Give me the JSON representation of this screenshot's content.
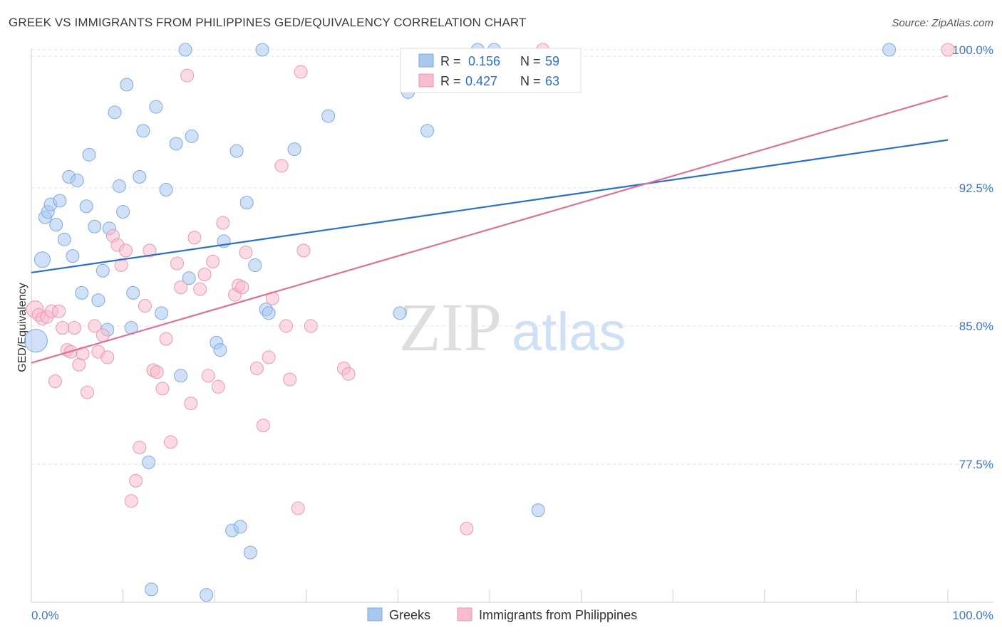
{
  "chart_data": {
    "type": "scatter",
    "title": "GREEK VS IMMIGRANTS FROM PHILIPPINES GED/EQUIVALENCY CORRELATION CHART",
    "source": "Source: ZipAtlas.com",
    "ylabel": "GED/Equivalency",
    "xlim": [
      0,
      100
    ],
    "ylim": [
      70,
      101
    ],
    "x_tick_labels": [
      "0.0%",
      "100.0%"
    ],
    "y_ticks": [
      {
        "value": 100,
        "label": "100.0%"
      },
      {
        "value": 92.5,
        "label": "92.5%"
      },
      {
        "value": 85,
        "label": "85.0%"
      },
      {
        "value": 77.5,
        "label": "77.5%"
      }
    ],
    "grid": true,
    "watermark": {
      "zip": "ZIP",
      "atlas": "atlas"
    },
    "legend": [
      {
        "r_label": "R =",
        "r_value": "0.156",
        "n_label": "N =",
        "n_value": "59"
      },
      {
        "r_label": "R =",
        "r_value": "0.427",
        "n_label": "N =",
        "n_value": "63"
      }
    ],
    "series": [
      {
        "name": "Greeks",
        "color": "#a9c8f0",
        "line_color": "#2a6fcc",
        "trend": {
          "x0": 0,
          "y0": 87.9,
          "x1": 100,
          "y1": 95.1
        },
        "points": [
          [
            0.5,
            84.2
          ],
          [
            1.2,
            88.6
          ],
          [
            1.5,
            90.9
          ],
          [
            1.8,
            91.2
          ],
          [
            2.1,
            91.6
          ],
          [
            2.7,
            90.5
          ],
          [
            3.1,
            91.8
          ],
          [
            3.6,
            89.7
          ],
          [
            4.1,
            93.1
          ],
          [
            4.5,
            88.8
          ],
          [
            5.0,
            92.9
          ],
          [
            5.5,
            86.8
          ],
          [
            6.0,
            91.5
          ],
          [
            6.3,
            94.3
          ],
          [
            6.9,
            90.4
          ],
          [
            7.3,
            86.4
          ],
          [
            7.8,
            88.0
          ],
          [
            8.3,
            84.8
          ],
          [
            8.5,
            90.3
          ],
          [
            9.1,
            96.6
          ],
          [
            9.6,
            92.6
          ],
          [
            10.0,
            91.2
          ],
          [
            10.4,
            98.1
          ],
          [
            10.9,
            84.9
          ],
          [
            11.1,
            86.8
          ],
          [
            11.8,
            93.1
          ],
          [
            12.2,
            95.6
          ],
          [
            12.8,
            77.6
          ],
          [
            13.1,
            70.7
          ],
          [
            13.6,
            96.9
          ],
          [
            14.2,
            85.7
          ],
          [
            14.7,
            92.4
          ],
          [
            15.8,
            94.9
          ],
          [
            16.3,
            82.3
          ],
          [
            16.8,
            100.0
          ],
          [
            17.2,
            87.6
          ],
          [
            17.5,
            95.3
          ],
          [
            19.1,
            70.4
          ],
          [
            20.2,
            84.1
          ],
          [
            20.6,
            83.7
          ],
          [
            21.0,
            89.6
          ],
          [
            21.9,
            73.9
          ],
          [
            22.4,
            94.5
          ],
          [
            22.8,
            74.1
          ],
          [
            23.5,
            91.7
          ],
          [
            23.9,
            72.7
          ],
          [
            24.4,
            88.3
          ],
          [
            25.2,
            100.0
          ],
          [
            25.6,
            85.9
          ],
          [
            25.9,
            85.7
          ],
          [
            28.7,
            94.6
          ],
          [
            32.4,
            96.4
          ],
          [
            40.2,
            85.7
          ],
          [
            41.1,
            97.7
          ],
          [
            43.2,
            95.6
          ],
          [
            48.7,
            100.0
          ],
          [
            50.5,
            100.0
          ],
          [
            55.3,
            75.0
          ],
          [
            93.6,
            100.0
          ]
        ]
      },
      {
        "name": "Immigrants from Philippines",
        "color": "#f7bccd",
        "line_color": "#e0709a",
        "trend": {
          "x0": 0,
          "y0": 83.0,
          "x1": 100,
          "y1": 97.5
        },
        "points": [
          [
            0.4,
            85.9
          ],
          [
            0.8,
            85.6
          ],
          [
            1.2,
            85.4
          ],
          [
            1.7,
            85.5
          ],
          [
            2.2,
            85.8
          ],
          [
            2.6,
            82.0
          ],
          [
            3.0,
            85.8
          ],
          [
            3.4,
            84.9
          ],
          [
            3.9,
            83.7
          ],
          [
            4.3,
            83.6
          ],
          [
            4.7,
            84.9
          ],
          [
            5.2,
            82.9
          ],
          [
            5.6,
            83.5
          ],
          [
            6.1,
            81.4
          ],
          [
            6.9,
            85.0
          ],
          [
            7.3,
            83.6
          ],
          [
            7.8,
            84.5
          ],
          [
            8.3,
            83.3
          ],
          [
            8.9,
            89.9
          ],
          [
            9.4,
            89.4
          ],
          [
            9.8,
            88.3
          ],
          [
            10.3,
            89.1
          ],
          [
            10.9,
            75.5
          ],
          [
            11.4,
            76.6
          ],
          [
            11.8,
            78.4
          ],
          [
            12.4,
            86.1
          ],
          [
            12.9,
            89.1
          ],
          [
            13.3,
            82.6
          ],
          [
            13.7,
            82.5
          ],
          [
            14.3,
            81.6
          ],
          [
            14.7,
            84.3
          ],
          [
            15.2,
            78.7
          ],
          [
            15.9,
            88.4
          ],
          [
            16.3,
            87.1
          ],
          [
            17.0,
            98.6
          ],
          [
            17.4,
            80.8
          ],
          [
            17.8,
            89.8
          ],
          [
            18.4,
            87.0
          ],
          [
            18.9,
            87.8
          ],
          [
            19.3,
            82.3
          ],
          [
            19.8,
            88.5
          ],
          [
            20.4,
            81.7
          ],
          [
            20.9,
            90.6
          ],
          [
            22.2,
            86.7
          ],
          [
            22.6,
            87.2
          ],
          [
            23.0,
            87.1
          ],
          [
            23.4,
            89.0
          ],
          [
            24.6,
            82.7
          ],
          [
            25.3,
            79.6
          ],
          [
            25.9,
            83.3
          ],
          [
            26.3,
            86.5
          ],
          [
            27.3,
            93.7
          ],
          [
            27.8,
            85.0
          ],
          [
            28.2,
            82.1
          ],
          [
            29.1,
            75.1
          ],
          [
            29.4,
            98.8
          ],
          [
            29.7,
            89.1
          ],
          [
            30.5,
            85.0
          ],
          [
            34.1,
            82.7
          ],
          [
            34.6,
            82.4
          ],
          [
            47.5,
            74.0
          ],
          [
            55.8,
            100.0
          ],
          [
            100.0,
            100.0
          ]
        ]
      }
    ]
  }
}
